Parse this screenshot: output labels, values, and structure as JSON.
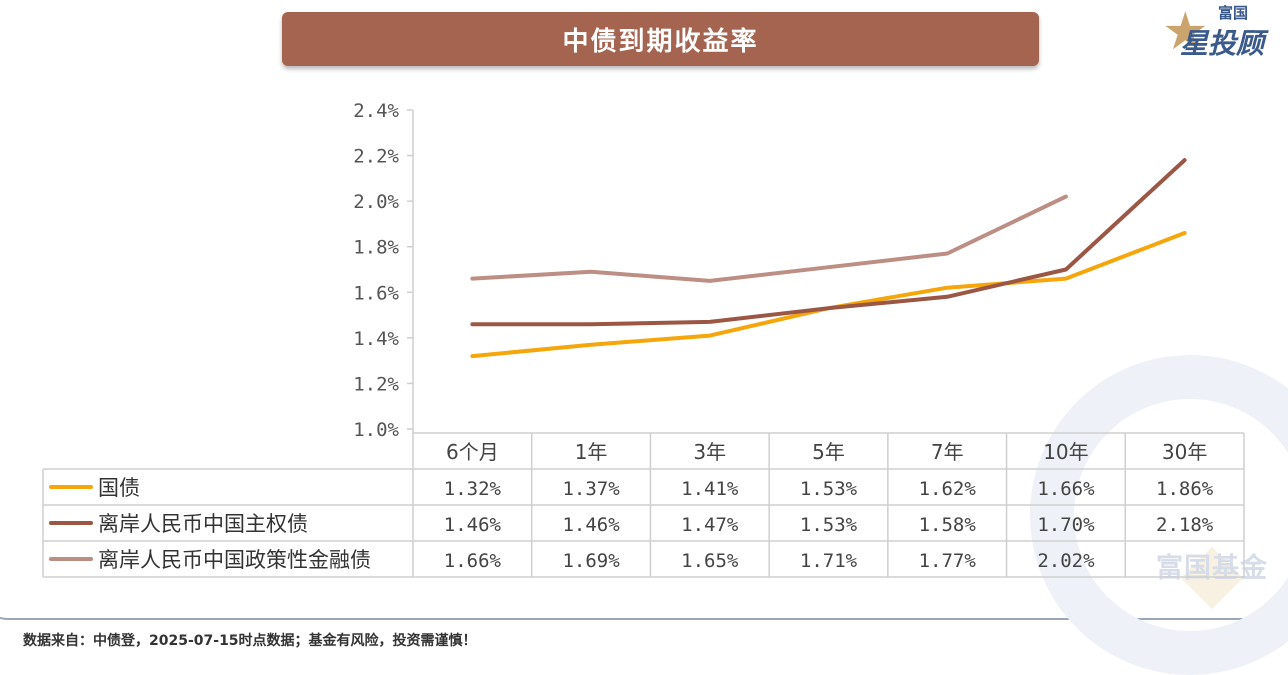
{
  "title": "中债到期收益率",
  "logo": {
    "top": "富国",
    "main": "星投顾",
    "icon": "star-icon"
  },
  "watermark": "富国基金",
  "footer": "数据来自：中债登，2025-07-15时点数据；基金有风险，投资需谨慎！",
  "chart_data": {
    "type": "line",
    "categories": [
      "6个月",
      "1年",
      "3年",
      "5年",
      "7年",
      "10年",
      "30年"
    ],
    "ylim": [
      1.0,
      2.4
    ],
    "yticks": [
      "2.4%",
      "2.2%",
      "2.0%",
      "1.8%",
      "1.6%",
      "1.4%",
      "1.2%",
      "1.0%"
    ],
    "series": [
      {
        "name": "国债",
        "color": "#f5a60a",
        "values": [
          1.32,
          1.37,
          1.41,
          1.53,
          1.62,
          1.66,
          1.86
        ],
        "labels": [
          "1.32%",
          "1.37%",
          "1.41%",
          "1.53%",
          "1.62%",
          "1.66%",
          "1.86%"
        ]
      },
      {
        "name": "离岸人民币中国主权债",
        "color": "#9b5644",
        "values": [
          1.46,
          1.46,
          1.47,
          1.53,
          1.58,
          1.7,
          2.18
        ],
        "labels": [
          "1.46%",
          "1.46%",
          "1.47%",
          "1.53%",
          "1.58%",
          "1.70%",
          "2.18%"
        ]
      },
      {
        "name": "离岸人民币中国政策性金融债",
        "color": "#bc8e84",
        "values": [
          1.66,
          1.69,
          1.65,
          1.71,
          1.77,
          2.02,
          null
        ],
        "labels": [
          "1.66%",
          "1.69%",
          "1.65%",
          "1.71%",
          "1.77%",
          "2.02%",
          ""
        ]
      }
    ],
    "grid": false,
    "legend": "data-table"
  }
}
